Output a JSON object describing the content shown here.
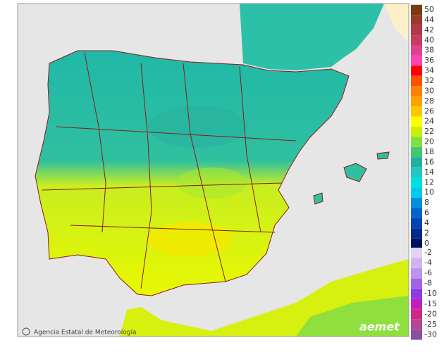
{
  "map": {
    "credit": "Agencia Estatal de Meteorología",
    "logo": "aemet",
    "legend": [
      {
        "label": 50,
        "color": "#7a3b12"
      },
      {
        "label": 44,
        "color": "#9a3a2c"
      },
      {
        "label": 42,
        "color": "#b23a44"
      },
      {
        "label": 40,
        "color": "#c83c5e"
      },
      {
        "label": 38,
        "color": "#e0428c"
      },
      {
        "label": 36,
        "color": "#ff44b4"
      },
      {
        "label": 34,
        "color": "#ff0000"
      },
      {
        "label": 32,
        "color": "#ff5000"
      },
      {
        "label": 30,
        "color": "#ff8000"
      },
      {
        "label": 28,
        "color": "#ffa000"
      },
      {
        "label": 26,
        "color": "#ffc800"
      },
      {
        "label": 24,
        "color": "#ffff00"
      },
      {
        "label": 22,
        "color": "#c8f000"
      },
      {
        "label": 20,
        "color": "#80e040"
      },
      {
        "label": 18,
        "color": "#40c870"
      },
      {
        "label": 16,
        "color": "#20b0a0"
      },
      {
        "label": 14,
        "color": "#20c8c0"
      },
      {
        "label": 12,
        "color": "#00e0e0"
      },
      {
        "label": 10,
        "color": "#00c8f0"
      },
      {
        "label": 8,
        "color": "#0090e0"
      },
      {
        "label": 6,
        "color": "#0064d0"
      },
      {
        "label": 4,
        "color": "#0044b0"
      },
      {
        "label": 2,
        "color": "#002a90"
      },
      {
        "label": 0,
        "color": "#001060"
      },
      {
        "label": -2,
        "color": "#e2d4f4"
      },
      {
        "label": -4,
        "color": "#d0b4f0"
      },
      {
        "label": -6,
        "color": "#bc94ee"
      },
      {
        "label": -8,
        "color": "#a064e8"
      },
      {
        "label": -10,
        "color": "#8c3ce0"
      },
      {
        "label": -15,
        "color": "#c020c0"
      },
      {
        "label": -20,
        "color": "#d02884"
      },
      {
        "label": -25,
        "color": "#b84490"
      },
      {
        "label": -30,
        "color": "#8c50a0"
      }
    ]
  }
}
